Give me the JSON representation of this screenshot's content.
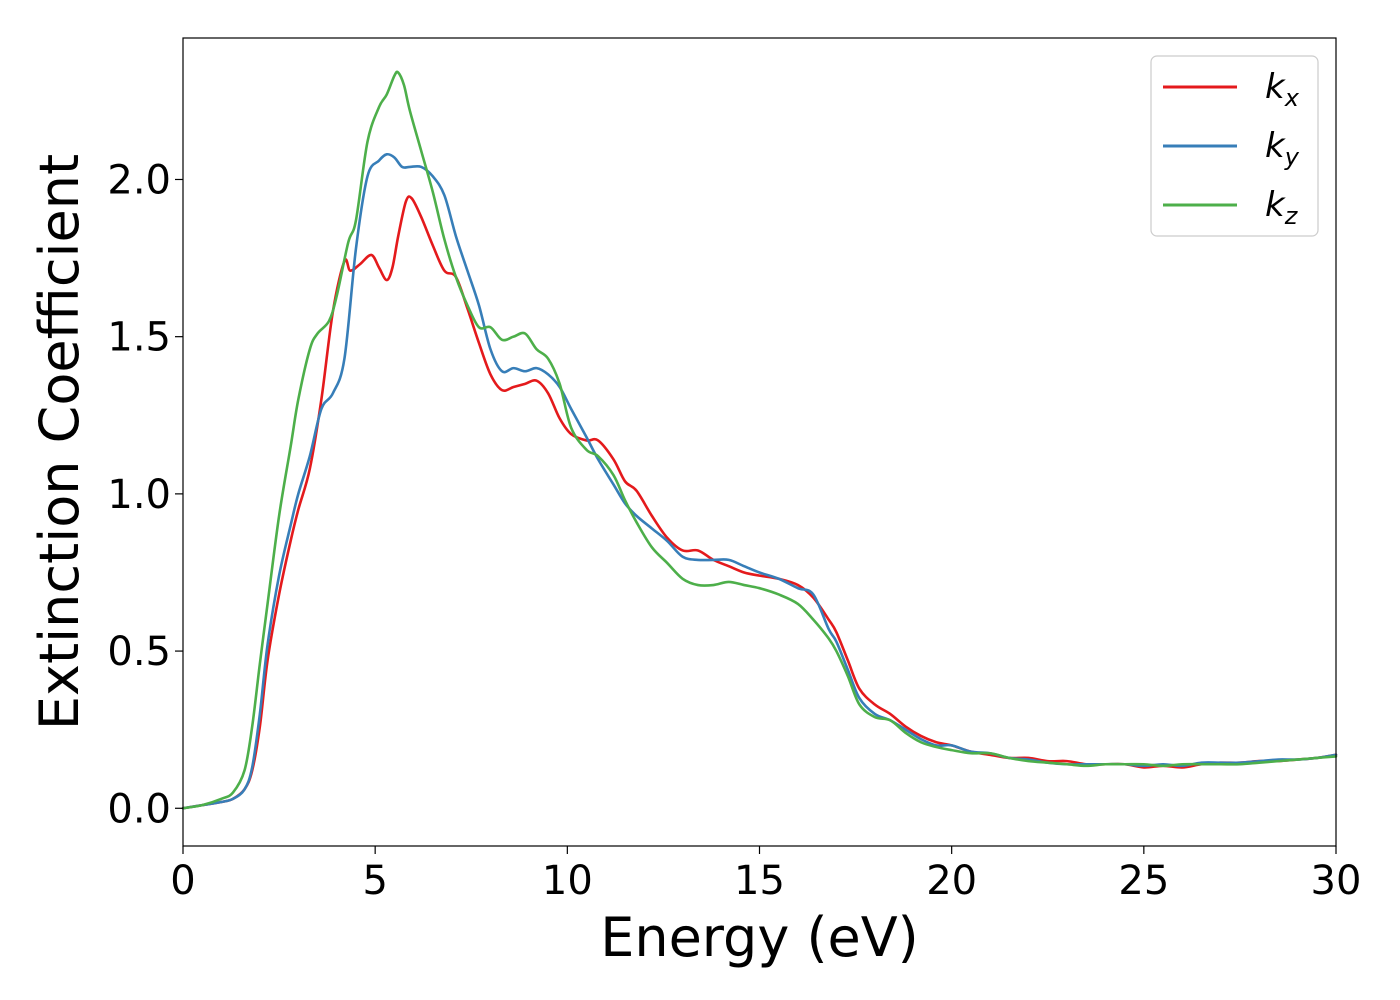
{
  "chart_data": {
    "type": "line",
    "xlabel": "Energy (eV)",
    "ylabel": "Extinction Coefficient",
    "xlim": [
      0,
      30
    ],
    "ylim": [
      -0.12,
      2.45
    ],
    "xticks": [
      0,
      5,
      10,
      15,
      20,
      25,
      30
    ],
    "xtick_labels": [
      "0",
      "5",
      "10",
      "15",
      "20",
      "25",
      "30"
    ],
    "yticks": [
      0.0,
      0.5,
      1.0,
      1.5,
      2.0
    ],
    "ytick_labels": [
      "0.0",
      "0.5",
      "1.0",
      "1.5",
      "2.0"
    ],
    "grid": false,
    "legend_position": "top-right",
    "series": [
      {
        "name": "k",
        "subscript": "x",
        "color": "#e41a1c",
        "x": [
          0,
          0.5,
          1.0,
          1.3,
          1.6,
          1.8,
          2.0,
          2.2,
          2.5,
          2.8,
          3.0,
          3.3,
          3.6,
          3.9,
          4.2,
          4.35,
          4.6,
          4.9,
          5.1,
          5.3,
          5.45,
          5.6,
          5.8,
          5.95,
          6.2,
          6.5,
          6.8,
          7.1,
          7.4,
          7.7,
          8.0,
          8.3,
          8.6,
          8.9,
          9.2,
          9.5,
          9.8,
          10.1,
          10.5,
          10.8,
          11.2,
          11.5,
          11.8,
          12.2,
          12.6,
          13.0,
          13.4,
          13.8,
          14.2,
          14.6,
          15.0,
          15.5,
          16.0,
          16.4,
          16.8,
          17.0,
          17.3,
          17.6,
          18.0,
          18.4,
          18.8,
          19.2,
          19.6,
          20.0,
          20.5,
          21.0,
          21.5,
          22.0,
          22.5,
          23.0,
          23.5,
          24.0,
          24.5,
          25.0,
          25.5,
          26.0,
          26.5,
          27.0,
          27.5,
          28.0,
          28.5,
          29.0,
          29.5,
          30.0
        ],
        "y": [
          0.0,
          0.01,
          0.02,
          0.03,
          0.06,
          0.12,
          0.26,
          0.47,
          0.68,
          0.85,
          0.95,
          1.08,
          1.3,
          1.58,
          1.74,
          1.71,
          1.73,
          1.76,
          1.72,
          1.68,
          1.72,
          1.82,
          1.93,
          1.94,
          1.88,
          1.79,
          1.71,
          1.69,
          1.59,
          1.48,
          1.38,
          1.33,
          1.34,
          1.35,
          1.36,
          1.32,
          1.24,
          1.19,
          1.17,
          1.17,
          1.11,
          1.04,
          1.01,
          0.93,
          0.86,
          0.82,
          0.82,
          0.79,
          0.77,
          0.75,
          0.74,
          0.73,
          0.71,
          0.67,
          0.6,
          0.56,
          0.47,
          0.38,
          0.33,
          0.3,
          0.26,
          0.23,
          0.21,
          0.2,
          0.18,
          0.17,
          0.16,
          0.16,
          0.15,
          0.15,
          0.14,
          0.14,
          0.14,
          0.13,
          0.135,
          0.13,
          0.14,
          0.145,
          0.145,
          0.15,
          0.15,
          0.155,
          0.16,
          0.17
        ]
      },
      {
        "name": "k",
        "subscript": "y",
        "color": "#377eb8",
        "x": [
          0,
          0.5,
          1.0,
          1.3,
          1.6,
          1.8,
          2.0,
          2.2,
          2.5,
          2.8,
          3.0,
          3.3,
          3.6,
          3.9,
          4.2,
          4.5,
          4.8,
          5.1,
          5.3,
          5.5,
          5.7,
          5.9,
          6.2,
          6.5,
          6.8,
          7.1,
          7.4,
          7.7,
          8.0,
          8.3,
          8.6,
          8.9,
          9.2,
          9.5,
          9.8,
          10.1,
          10.5,
          10.8,
          11.2,
          11.5,
          11.8,
          12.2,
          12.6,
          13.0,
          13.4,
          13.8,
          14.2,
          14.6,
          15.0,
          15.5,
          16.0,
          16.4,
          16.8,
          17.0,
          17.3,
          17.6,
          18.0,
          18.4,
          18.8,
          19.2,
          19.6,
          20.0,
          20.5,
          21.0,
          21.5,
          22.0,
          22.5,
          23.0,
          23.5,
          24.0,
          24.5,
          25.0,
          25.5,
          26.0,
          26.5,
          27.0,
          27.5,
          28.0,
          28.5,
          29.0,
          29.5,
          30.0
        ],
        "y": [
          0.0,
          0.01,
          0.02,
          0.03,
          0.06,
          0.13,
          0.3,
          0.52,
          0.74,
          0.9,
          1.0,
          1.12,
          1.27,
          1.32,
          1.43,
          1.78,
          2.01,
          2.06,
          2.08,
          2.07,
          2.04,
          2.04,
          2.04,
          2.01,
          1.95,
          1.82,
          1.71,
          1.6,
          1.46,
          1.39,
          1.4,
          1.39,
          1.4,
          1.38,
          1.34,
          1.27,
          1.18,
          1.11,
          1.03,
          0.97,
          0.93,
          0.89,
          0.85,
          0.8,
          0.79,
          0.79,
          0.79,
          0.77,
          0.75,
          0.73,
          0.7,
          0.68,
          0.57,
          0.53,
          0.44,
          0.35,
          0.3,
          0.28,
          0.25,
          0.22,
          0.2,
          0.2,
          0.18,
          0.175,
          0.16,
          0.155,
          0.145,
          0.14,
          0.14,
          0.14,
          0.14,
          0.135,
          0.14,
          0.135,
          0.145,
          0.145,
          0.145,
          0.15,
          0.155,
          0.155,
          0.16,
          0.17
        ]
      },
      {
        "name": "k",
        "subscript": "z",
        "color": "#4daf4a",
        "x": [
          0,
          0.5,
          1.0,
          1.3,
          1.6,
          1.8,
          2.0,
          2.2,
          2.5,
          2.8,
          3.0,
          3.3,
          3.5,
          3.8,
          4.0,
          4.3,
          4.5,
          4.8,
          5.1,
          5.3,
          5.5,
          5.6,
          5.75,
          5.9,
          6.2,
          6.5,
          6.8,
          7.1,
          7.4,
          7.7,
          8.0,
          8.3,
          8.6,
          8.9,
          9.2,
          9.5,
          9.8,
          10.1,
          10.5,
          10.8,
          11.2,
          11.5,
          11.8,
          12.2,
          12.6,
          13.0,
          13.4,
          13.8,
          14.2,
          14.6,
          15.0,
          15.5,
          16.0,
          16.4,
          16.8,
          17.0,
          17.3,
          17.6,
          18.0,
          18.4,
          18.8,
          19.2,
          19.6,
          20.0,
          20.5,
          21.0,
          21.5,
          22.0,
          22.5,
          23.0,
          23.5,
          24.0,
          24.5,
          25.0,
          25.5,
          26.0,
          26.5,
          27.0,
          27.5,
          28.0,
          28.5,
          29.0,
          29.5,
          30.0
        ],
        "y": [
          0.0,
          0.01,
          0.03,
          0.05,
          0.12,
          0.26,
          0.46,
          0.65,
          0.93,
          1.15,
          1.3,
          1.46,
          1.51,
          1.55,
          1.63,
          1.8,
          1.87,
          2.12,
          2.23,
          2.27,
          2.33,
          2.34,
          2.3,
          2.22,
          2.09,
          1.96,
          1.81,
          1.69,
          1.6,
          1.53,
          1.53,
          1.49,
          1.5,
          1.51,
          1.46,
          1.43,
          1.35,
          1.21,
          1.14,
          1.12,
          1.06,
          0.98,
          0.91,
          0.83,
          0.78,
          0.73,
          0.71,
          0.71,
          0.72,
          0.71,
          0.7,
          0.68,
          0.65,
          0.6,
          0.54,
          0.5,
          0.42,
          0.33,
          0.29,
          0.28,
          0.24,
          0.21,
          0.195,
          0.185,
          0.175,
          0.175,
          0.16,
          0.15,
          0.145,
          0.14,
          0.135,
          0.14,
          0.14,
          0.14,
          0.135,
          0.14,
          0.14,
          0.14,
          0.14,
          0.145,
          0.15,
          0.155,
          0.16,
          0.165
        ]
      }
    ]
  }
}
